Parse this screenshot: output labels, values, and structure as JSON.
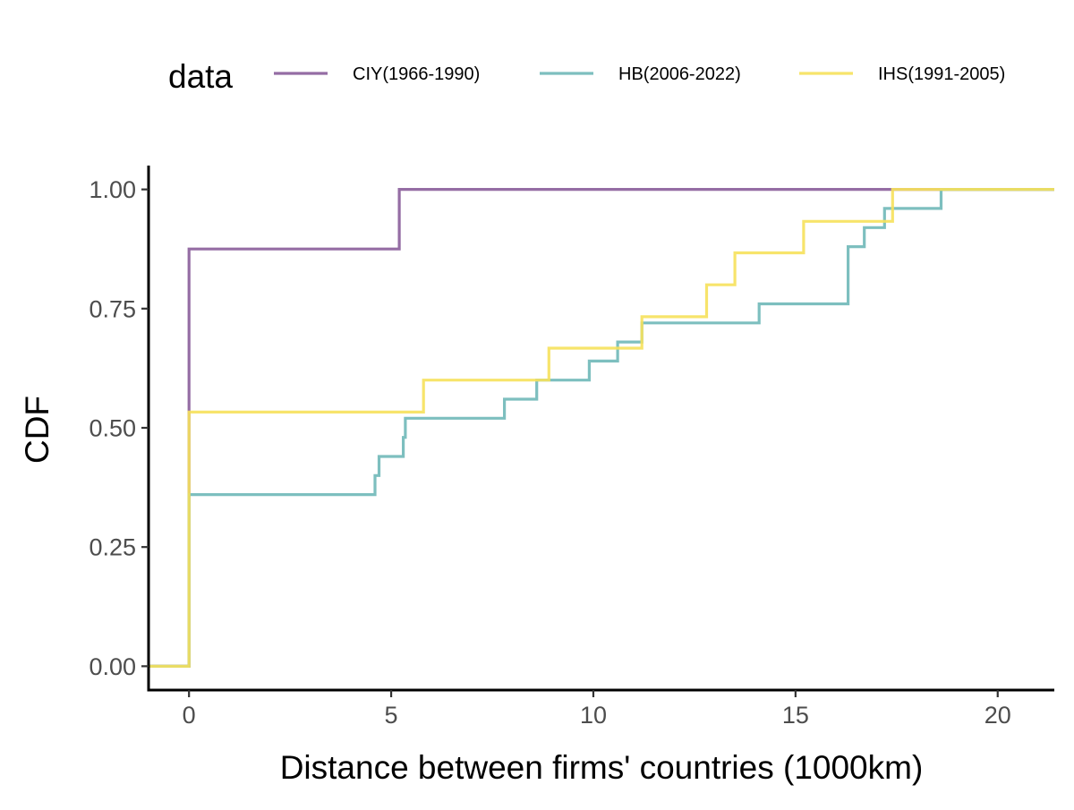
{
  "chart_data": {
    "type": "line",
    "step": true,
    "xlabel": "Distance between firms' countries (1000km)",
    "ylabel": "CDF",
    "xlim": [
      -1,
      21.4
    ],
    "ylim": [
      -0.05,
      1.05
    ],
    "x_ticks": [
      0,
      5,
      10,
      15,
      20
    ],
    "x_tick_labels": [
      "0",
      "5",
      "10",
      "15",
      "20"
    ],
    "y_ticks": [
      0,
      0.25,
      0.5,
      0.75,
      1.0
    ],
    "y_tick_labels": [
      "0.00",
      "0.25",
      "0.50",
      "0.75",
      "1.00"
    ],
    "grid": false,
    "legend": {
      "title": "data",
      "position": "top",
      "entries": [
        "CIY(1966-1990)",
        "HB(2006-2022)",
        "IHS(1991-2005)"
      ]
    },
    "series": [
      {
        "name": "CIY(1966-1990)",
        "color": "#8a5d9a",
        "points": [
          [
            -1,
            0
          ],
          [
            0,
            0
          ],
          [
            0,
            0.875
          ],
          [
            5.2,
            0.875
          ],
          [
            5.2,
            1.0
          ],
          [
            21.4,
            1.0
          ]
        ]
      },
      {
        "name": "HB(2006-2022)",
        "color": "#6fb8b8",
        "points": [
          [
            -1,
            0
          ],
          [
            0,
            0
          ],
          [
            0,
            0.36
          ],
          [
            4.6,
            0.36
          ],
          [
            4.6,
            0.4
          ],
          [
            4.7,
            0.4
          ],
          [
            4.7,
            0.44
          ],
          [
            5.3,
            0.44
          ],
          [
            5.3,
            0.48
          ],
          [
            5.35,
            0.48
          ],
          [
            5.35,
            0.52
          ],
          [
            7.8,
            0.52
          ],
          [
            7.8,
            0.56
          ],
          [
            8.6,
            0.56
          ],
          [
            8.6,
            0.6
          ],
          [
            9.9,
            0.6
          ],
          [
            9.9,
            0.64
          ],
          [
            10.6,
            0.64
          ],
          [
            10.6,
            0.68
          ],
          [
            11.2,
            0.68
          ],
          [
            11.2,
            0.72
          ],
          [
            14.1,
            0.72
          ],
          [
            14.1,
            0.76
          ],
          [
            16.3,
            0.76
          ],
          [
            16.3,
            0.88
          ],
          [
            16.7,
            0.88
          ],
          [
            16.7,
            0.92
          ],
          [
            17.2,
            0.92
          ],
          [
            17.2,
            0.96
          ],
          [
            18.6,
            0.96
          ],
          [
            18.6,
            1.0
          ],
          [
            21.4,
            1.0
          ]
        ]
      },
      {
        "name": "IHS(1991-2005)",
        "color": "#f6e15b",
        "points": [
          [
            -1,
            0
          ],
          [
            0,
            0
          ],
          [
            0,
            0.533
          ],
          [
            5.8,
            0.533
          ],
          [
            5.8,
            0.6
          ],
          [
            8.9,
            0.6
          ],
          [
            8.9,
            0.667
          ],
          [
            11.2,
            0.667
          ],
          [
            11.2,
            0.733
          ],
          [
            12.8,
            0.733
          ],
          [
            12.8,
            0.8
          ],
          [
            13.5,
            0.8
          ],
          [
            13.5,
            0.867
          ],
          [
            15.2,
            0.867
          ],
          [
            15.2,
            0.933
          ],
          [
            17.4,
            0.933
          ],
          [
            17.4,
            1.0
          ],
          [
            21.4,
            1.0
          ]
        ]
      }
    ]
  }
}
